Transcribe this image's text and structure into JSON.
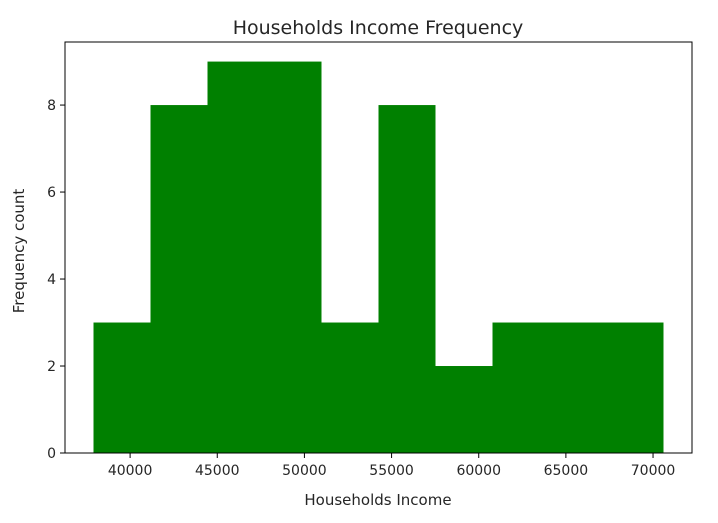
{
  "chart_data": {
    "type": "bar",
    "subtype": "histogram",
    "title": "Households Income Frequency",
    "xlabel": "Households Income",
    "ylabel": "Frequency count",
    "bin_edges": [
      37900,
      41170,
      44440,
      47710,
      50980,
      54250,
      57520,
      60790,
      64060,
      67330,
      70600
    ],
    "values": [
      3,
      8,
      9,
      9,
      3,
      8,
      2,
      3,
      3,
      3
    ],
    "xlim": [
      36265,
      72235
    ],
    "ylim": [
      0,
      9.45
    ],
    "xticks": [
      40000,
      45000,
      50000,
      55000,
      60000,
      65000,
      70000
    ],
    "yticks": [
      0,
      2,
      4,
      6,
      8
    ],
    "bar_color": "#008000",
    "grid": false,
    "legend": "none"
  }
}
